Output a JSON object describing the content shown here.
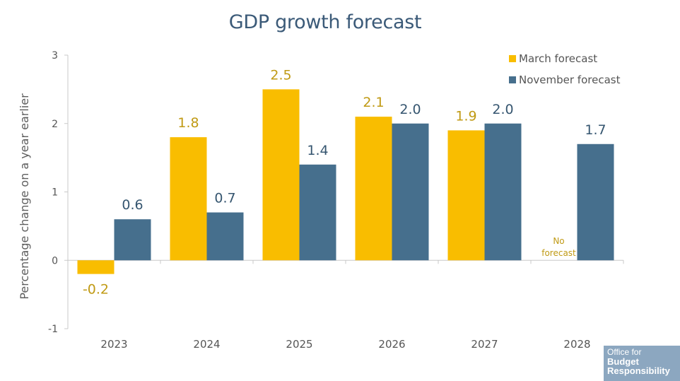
{
  "chart_data": {
    "type": "bar",
    "title": "GDP growth forecast",
    "ylabel": "Percentage change on a year earlier",
    "xlabel": "",
    "ylim": [
      -1,
      3
    ],
    "yticks": [
      3,
      2,
      1,
      0,
      -1
    ],
    "categories": [
      "2023",
      "2024",
      "2025",
      "2026",
      "2027",
      "2028"
    ],
    "series": [
      {
        "name": "March forecast",
        "color": "#f9bd00",
        "label_color": "#c09a14",
        "values": [
          -0.2,
          1.8,
          2.5,
          2.1,
          1.9,
          null
        ],
        "labels": [
          "-0.2",
          "1.8",
          "2.5",
          "2.1",
          "1.9",
          null
        ]
      },
      {
        "name": "November forecast",
        "color": "#466f8d",
        "label_color": "#365670",
        "values": [
          0.6,
          0.7,
          1.4,
          2.0,
          2.0,
          1.7
        ],
        "labels": [
          "0.6",
          "0.7",
          "1.4",
          "2.0",
          "2.0",
          "1.7"
        ]
      }
    ],
    "annotations": [
      {
        "category": "2028",
        "series": "March forecast",
        "text_lines": [
          "No",
          "forecast"
        ]
      }
    ],
    "legend_position": "top-right"
  },
  "logo": {
    "line1": "Office for",
    "line2": "Budget",
    "line3": "Responsibility"
  }
}
